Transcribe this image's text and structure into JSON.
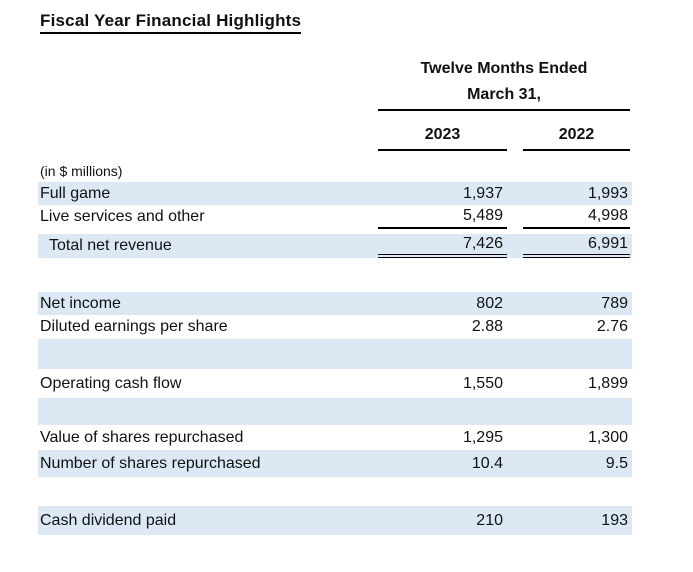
{
  "title": "Fiscal Year Financial Highlights",
  "table": {
    "period_header": {
      "line1": "Twelve Months Ended",
      "line2": "March 31,"
    },
    "year_columns": [
      "2023",
      "2022"
    ],
    "units_note": "(in $ millions)",
    "rows": [
      {
        "label": "Full game",
        "values": [
          "1,937",
          "1,993"
        ]
      },
      {
        "label": "Live services and other",
        "values": [
          "5,489",
          "4,998"
        ]
      },
      {
        "label": "Total net revenue",
        "values": [
          "7,426",
          "6,991"
        ]
      },
      {
        "label": "Net income",
        "values": [
          "802",
          "789"
        ]
      },
      {
        "label": "Diluted earnings per share",
        "values": [
          "2.88",
          "2.76"
        ]
      },
      {
        "label": "Operating cash flow",
        "values": [
          "1,550",
          "1,899"
        ]
      },
      {
        "label": "Value of shares repurchased",
        "values": [
          "1,295",
          "1,300"
        ]
      },
      {
        "label": "Number of shares repurchased",
        "values": [
          "10.4",
          "9.5"
        ]
      },
      {
        "label": "Cash dividend paid",
        "values": [
          "210",
          "193"
        ]
      }
    ]
  },
  "colors": {
    "row_shade": "#dce9f5",
    "rule": "#000000",
    "text": "#111111"
  }
}
